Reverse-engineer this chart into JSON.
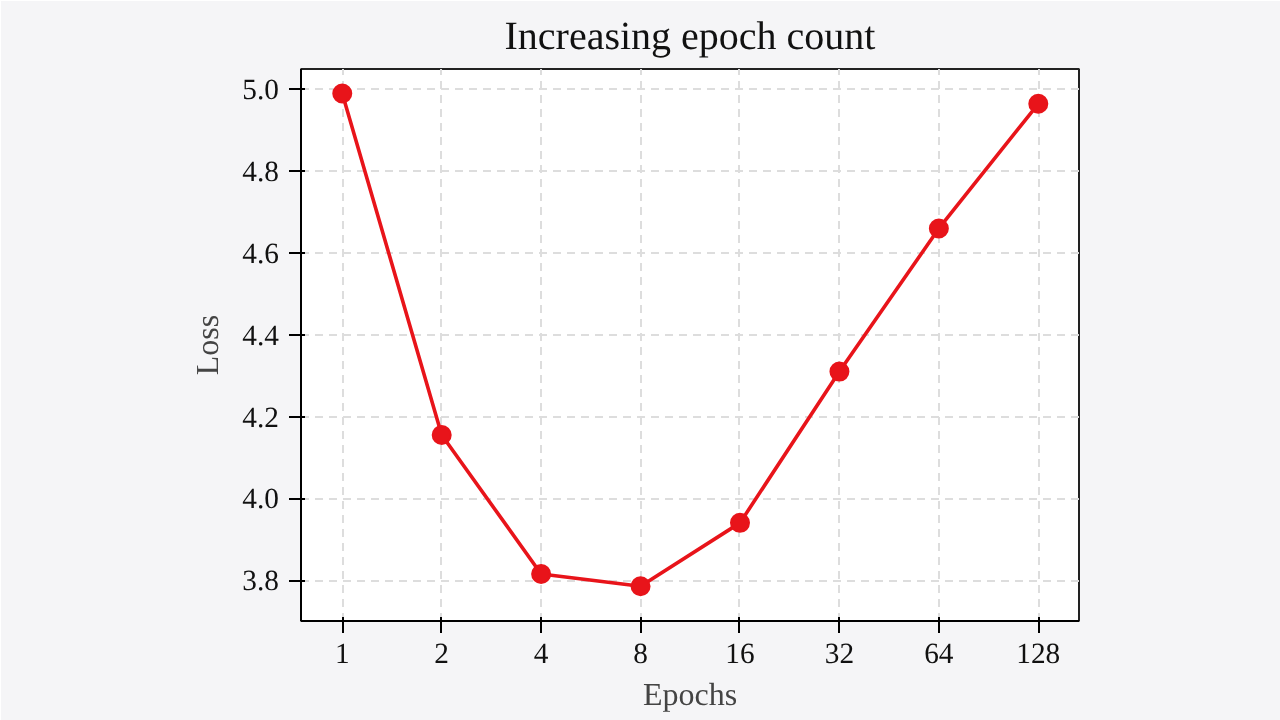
{
  "chart_data": {
    "type": "line",
    "title": "Increasing epoch count",
    "xlabel": "Epochs",
    "ylabel": "Loss",
    "x": [
      1,
      2,
      4,
      8,
      16,
      32,
      64,
      128
    ],
    "series": [
      {
        "color": "#e8141a",
        "values": [
          4.99,
          4.155,
          3.815,
          3.785,
          3.94,
          4.31,
          4.66,
          4.965
        ]
      }
    ],
    "log": "x",
    "xlim": [
      0.75,
      170
    ],
    "ylim": [
      3.7,
      5.05
    ],
    "xticks": [
      1,
      2,
      4,
      8,
      16,
      32,
      64,
      128
    ],
    "yticks": [
      {
        "value": 3.8,
        "label": "3.8"
      },
      {
        "value": 4.0,
        "label": "4.0"
      },
      {
        "value": 4.2,
        "label": "4.2"
      },
      {
        "value": 4.4,
        "label": "4.4"
      },
      {
        "value": 4.6,
        "label": "4.6"
      },
      {
        "value": 4.8,
        "label": "4.8"
      },
      {
        "value": 5.0,
        "label": "5.0"
      }
    ],
    "grid": true,
    "marker": "circle",
    "line_style": "solid"
  }
}
